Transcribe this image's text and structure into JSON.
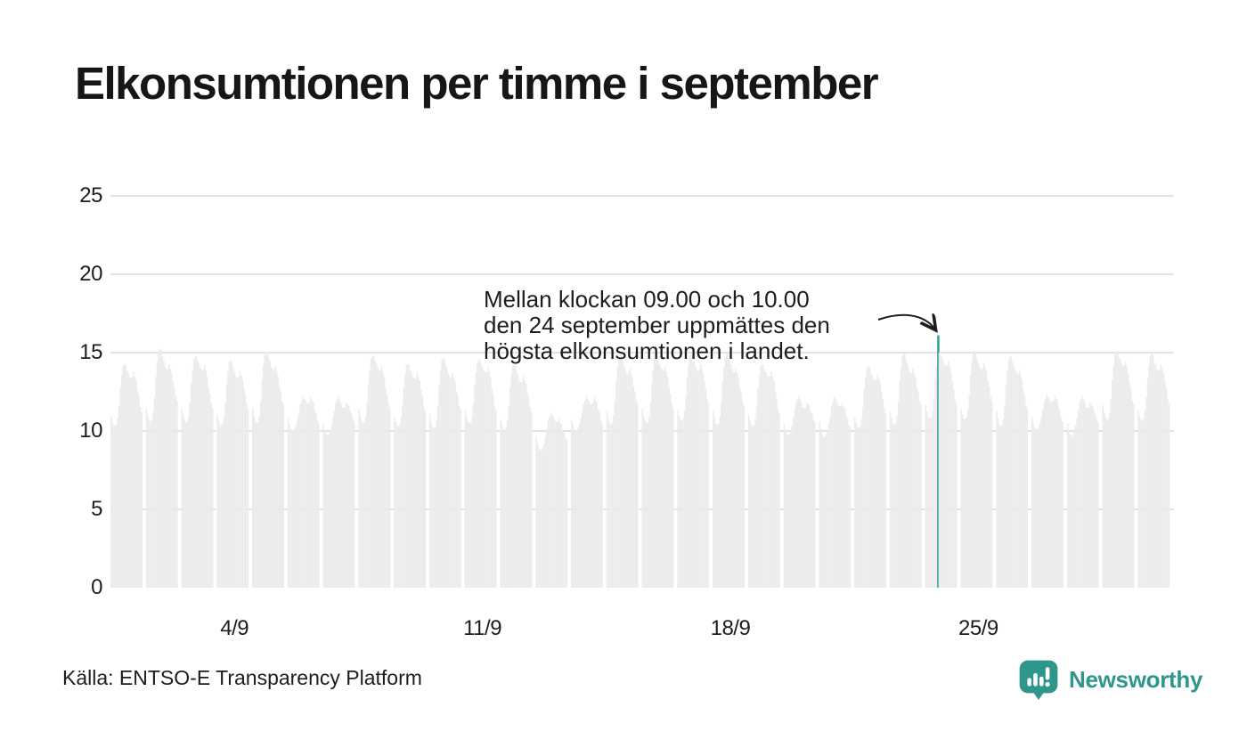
{
  "title": "Elkonsumtionen per timme i september",
  "annotation": {
    "lines": [
      "Mellan klockan 09.00 och 10.00",
      "den 24 september uppmättes den",
      "högsta elkonsumtionen i landet."
    ]
  },
  "source": "Källa: ENTSO-E Transparency Platform",
  "logo": {
    "text": "Newsworthy"
  },
  "colors": {
    "bar": "#ebebeb",
    "highlight": "#2f9e93",
    "gridline": "#e3e3e3",
    "text": "#1d1d1b",
    "brand": "#2e968b"
  },
  "chart_data": {
    "type": "bar",
    "title": "Elkonsumtionen per timme i september",
    "x_axis": {
      "tick_labels": [
        {
          "day": 4,
          "label": "4/9"
        },
        {
          "day": 11,
          "label": "11/9"
        },
        {
          "day": 18,
          "label": "18/9"
        },
        {
          "day": 25,
          "label": "25/9"
        }
      ]
    },
    "y_axis": {
      "ticks": [
        0,
        5,
        10,
        15,
        20,
        25
      ],
      "range": [
        0,
        26
      ]
    },
    "days_in_month": 30,
    "hours_per_day": 24,
    "weekend_days": [
      6,
      7,
      13,
      14,
      20,
      21,
      27,
      28
    ],
    "weekday_hourly_profile": [
      11.2,
      10.8,
      10.5,
      10.4,
      10.5,
      10.9,
      11.8,
      13.0,
      13.9,
      14.5,
      14.7,
      14.6,
      14.3,
      14.0,
      13.8,
      13.6,
      13.7,
      13.9,
      13.7,
      13.3,
      12.8,
      12.3,
      11.8,
      11.4
    ],
    "weekend_hourly_profile": [
      10.8,
      10.4,
      10.1,
      10.0,
      10.0,
      10.2,
      10.5,
      10.9,
      11.4,
      11.9,
      12.2,
      12.4,
      12.3,
      12.1,
      11.9,
      11.8,
      11.9,
      12.1,
      12.0,
      11.8,
      11.5,
      11.2,
      10.9,
      10.6
    ],
    "day_scale": [
      0.98,
      1.03,
      1.01,
      0.99,
      1.02,
      0.99,
      0.98,
      1.01,
      0.98,
      0.99,
      1.0,
      0.97,
      0.89,
      0.99,
      1.01,
      1.01,
      1.02,
      1.01,
      0.98,
      0.98,
      0.97,
      0.97,
      1.01,
      1.03,
      1.03,
      1.0,
      1.0,
      0.98,
      1.03,
      1.02
    ],
    "noise_amplitude": 0.13,
    "highlight": {
      "day": 24,
      "hour_index": 9,
      "hour_start": "09.00",
      "hour_end": "10.00",
      "value": 16.1
    }
  }
}
